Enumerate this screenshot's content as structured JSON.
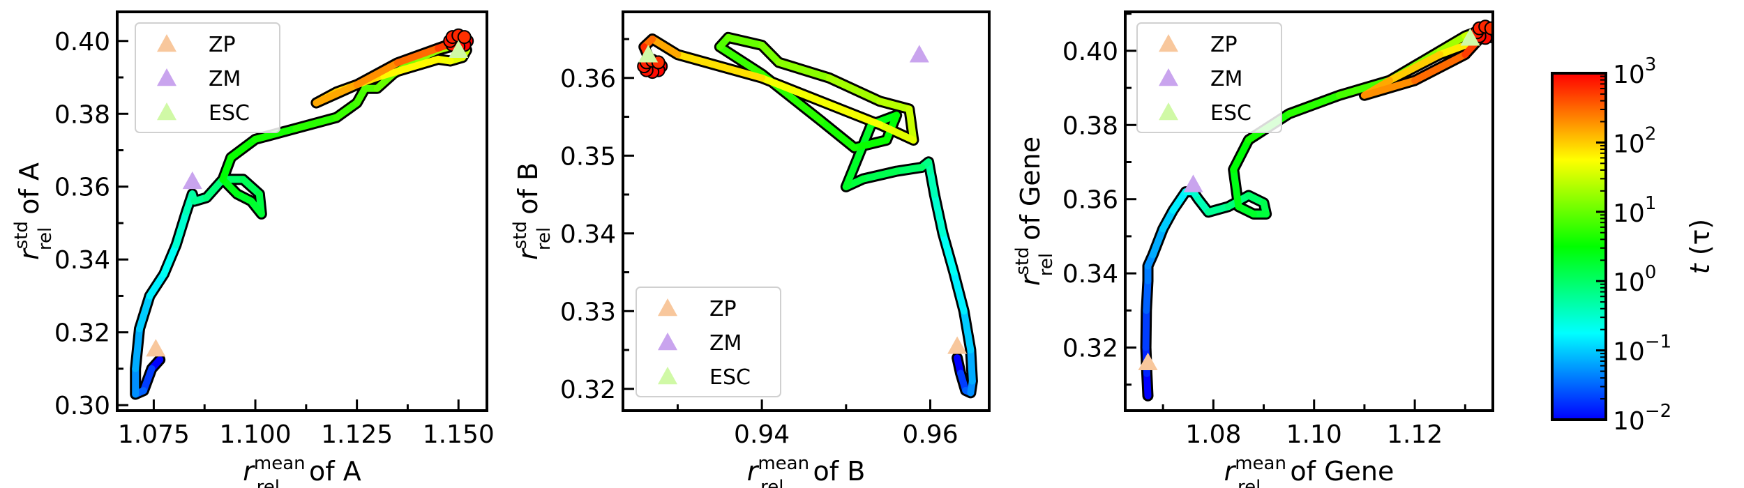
{
  "chart_data": [
    {
      "type": "scatter",
      "panel": "A",
      "xlabel": {
        "var": "r",
        "sup": "mean",
        "sub": "rel",
        "suffix": " of A"
      },
      "ylabel": {
        "var": "r",
        "sup": "std",
        "sub": "rel",
        "suffix": " of A"
      },
      "xlim": [
        1.066,
        1.157
      ],
      "ylim": [
        0.2985,
        0.408
      ],
      "xticks": [
        "1.075",
        "1.100",
        "1.125",
        "1.150"
      ],
      "yticks": [
        "0.30",
        "0.32",
        "0.34",
        "0.36",
        "0.38",
        "0.40"
      ],
      "legend": {
        "placement": "top-left",
        "entries": [
          "ZP",
          "ZM",
          "ESC"
        ]
      },
      "markers": [
        {
          "name": "ZP",
          "x": 1.0755,
          "y": 0.3155
        },
        {
          "name": "ZM",
          "x": 1.0845,
          "y": 0.3615
        },
        {
          "name": "ESC",
          "x": 1.15,
          "y": 0.3975
        }
      ],
      "trajectory": {
        "x": [
          1.0765,
          1.0745,
          1.0725,
          1.0705,
          1.0705,
          1.0715,
          1.074,
          1.0775,
          1.0805,
          1.083,
          1.0845,
          1.085,
          1.088,
          1.092,
          1.097,
          1.101,
          1.1015,
          1.099,
          1.0955,
          1.092,
          1.094,
          1.1,
          1.11,
          1.12,
          1.125,
          1.127,
          1.13,
          1.134,
          1.14,
          1.145,
          1.15,
          1.152,
          1.151,
          1.148,
          1.145,
          1.13,
          1.12,
          1.115,
          1.125,
          1.135,
          1.145,
          1.15
        ],
        "y": [
          0.3125,
          0.31,
          0.304,
          0.303,
          0.31,
          0.321,
          0.33,
          0.336,
          0.344,
          0.353,
          0.358,
          0.356,
          0.357,
          0.362,
          0.362,
          0.358,
          0.3525,
          0.356,
          0.358,
          0.362,
          0.368,
          0.373,
          0.376,
          0.379,
          0.383,
          0.387,
          0.387,
          0.391,
          0.395,
          0.3975,
          0.399,
          0.3975,
          0.3955,
          0.3945,
          0.395,
          0.39,
          0.386,
          0.383,
          0.388,
          0.394,
          0.398,
          0.4
        ],
        "t": [
          0.01,
          0.02,
          0.03,
          0.05,
          0.07,
          0.1,
          0.15,
          0.2,
          0.3,
          0.4,
          0.5,
          0.6,
          0.8,
          1.0,
          1.2,
          1.5,
          1.8,
          2.0,
          2.5,
          3.0,
          3.5,
          4.0,
          5.0,
          6.0,
          7.0,
          8.0,
          10,
          12,
          15,
          20,
          25,
          30,
          40,
          50,
          60,
          80,
          100,
          150,
          200,
          300,
          500,
          1000
        ]
      }
    },
    {
      "type": "scatter",
      "panel": "B",
      "xlabel": {
        "var": "r",
        "sup": "mean",
        "sub": "rel",
        "suffix": " of B"
      },
      "ylabel": {
        "var": "r",
        "sup": "std",
        "sub": "rel",
        "suffix": " of B"
      },
      "xlim": [
        0.9235,
        0.967
      ],
      "ylim": [
        0.3172,
        0.3685
      ],
      "xticks": [
        "0.94",
        "0.96"
      ],
      "yticks": [
        "0.32",
        "0.33",
        "0.34",
        "0.35",
        "0.36"
      ],
      "legend": {
        "placement": "bottom-left",
        "entries": [
          "ZP",
          "ZM",
          "ESC"
        ]
      },
      "markers": [
        {
          "name": "ZP",
          "x": 0.9632,
          "y": 0.3255
        },
        {
          "name": "ZM",
          "x": 0.9587,
          "y": 0.363
        },
        {
          "name": "ESC",
          "x": 0.9265,
          "y": 0.363
        }
      ],
      "trajectory": {
        "x": [
          0.9632,
          0.9636,
          0.9642,
          0.9648,
          0.965,
          0.9648,
          0.964,
          0.9628,
          0.9615,
          0.9605,
          0.96,
          0.9598,
          0.959,
          0.956,
          0.952,
          0.95,
          0.953,
          0.956,
          0.9548,
          0.951,
          0.947,
          0.94,
          0.935,
          0.936,
          0.94,
          0.942,
          0.948,
          0.954,
          0.9575,
          0.958,
          0.954,
          0.94,
          0.93,
          0.927,
          0.926,
          0.927
        ],
        "y": [
          0.324,
          0.322,
          0.3198,
          0.3195,
          0.321,
          0.325,
          0.33,
          0.335,
          0.34,
          0.345,
          0.348,
          0.3492,
          0.3485,
          0.348,
          0.347,
          0.346,
          0.354,
          0.3552,
          0.352,
          0.351,
          0.3545,
          0.3605,
          0.364,
          0.3652,
          0.3642,
          0.362,
          0.36,
          0.357,
          0.356,
          0.352,
          0.354,
          0.36,
          0.363,
          0.365,
          0.364,
          0.3615
        ],
        "t": [
          0.01,
          0.02,
          0.03,
          0.05,
          0.07,
          0.1,
          0.15,
          0.2,
          0.3,
          0.4,
          0.5,
          0.7,
          1.0,
          1.3,
          1.6,
          2.0,
          2.5,
          3.0,
          3.5,
          4.0,
          5.0,
          6.0,
          8.0,
          10,
          12,
          15,
          20,
          25,
          30,
          40,
          50,
          80,
          150,
          300,
          600,
          1000
        ]
      }
    },
    {
      "type": "scatter",
      "panel": "Gene",
      "xlabel": {
        "var": "r",
        "sup": "mean",
        "sub": "rel",
        "suffix": " of Gene"
      },
      "ylabel": {
        "var": "r",
        "sup": "std",
        "sub": "rel",
        "suffix": " of Gene"
      },
      "xlim": [
        1.0625,
        1.1355
      ],
      "ylim": [
        0.303,
        0.4105
      ],
      "xticks": [
        "1.08",
        "1.10",
        "1.12"
      ],
      "yticks": [
        "0.32",
        "0.34",
        "0.36",
        "0.38",
        "0.40"
      ],
      "legend": {
        "placement": "top-left",
        "entries": [
          "ZP",
          "ZM",
          "ESC"
        ]
      },
      "markers": [
        {
          "name": "ZP",
          "x": 1.067,
          "y": 0.316
        },
        {
          "name": "ZM",
          "x": 1.076,
          "y": 0.364
        },
        {
          "name": "ESC",
          "x": 1.131,
          "y": 0.4035
        }
      ],
      "trajectory": {
        "x": [
          1.067,
          1.0668,
          1.0666,
          1.0667,
          1.067,
          1.067,
          1.068,
          1.07,
          1.072,
          1.0745,
          1.076,
          1.077,
          1.079,
          1.083,
          1.087,
          1.09,
          1.0905,
          1.088,
          1.085,
          1.084,
          1.087,
          1.095,
          1.105,
          1.115,
          1.12,
          1.125,
          1.13,
          1.132,
          1.133,
          1.131,
          1.125,
          1.115,
          1.11,
          1.12,
          1.13,
          1.134
        ],
        "y": [
          0.307,
          0.313,
          0.32,
          0.33,
          0.338,
          0.342,
          0.345,
          0.352,
          0.357,
          0.362,
          0.362,
          0.36,
          0.3565,
          0.358,
          0.361,
          0.359,
          0.356,
          0.356,
          0.358,
          0.368,
          0.376,
          0.383,
          0.388,
          0.392,
          0.396,
          0.4,
          0.404,
          0.405,
          0.404,
          0.402,
          0.399,
          0.392,
          0.388,
          0.392,
          0.399,
          0.405
        ],
        "t": [
          0.01,
          0.015,
          0.02,
          0.03,
          0.04,
          0.05,
          0.07,
          0.1,
          0.15,
          0.2,
          0.3,
          0.4,
          0.6,
          0.8,
          1.0,
          1.3,
          1.6,
          2.0,
          2.5,
          3.0,
          4.0,
          5.0,
          7.0,
          10,
          15,
          20,
          30,
          40,
          50,
          70,
          100,
          150,
          200,
          300,
          500,
          1000
        ]
      }
    },
    {
      "type": "colorbar",
      "label": {
        "var": "t",
        "rest": " (τ)"
      },
      "scale": "log",
      "range": [
        0.01,
        1000
      ],
      "ticks": [
        {
          "base": "10",
          "exp": "−2"
        },
        {
          "base": "10",
          "exp": "−1"
        },
        {
          "base": "10",
          "exp": "0"
        },
        {
          "base": "10",
          "exp": "1"
        },
        {
          "base": "10",
          "exp": "2"
        },
        {
          "base": "10",
          "exp": "3"
        }
      ],
      "colormap": [
        "#0000ff",
        "#00ffff",
        "#00ff00",
        "#ffff00",
        "#ff0000"
      ]
    }
  ],
  "colors": {
    "ZP": "#f8c79c",
    "ZM": "#c9a4ee",
    "ESC": "#d0f9a6",
    "outline": "#000000"
  }
}
